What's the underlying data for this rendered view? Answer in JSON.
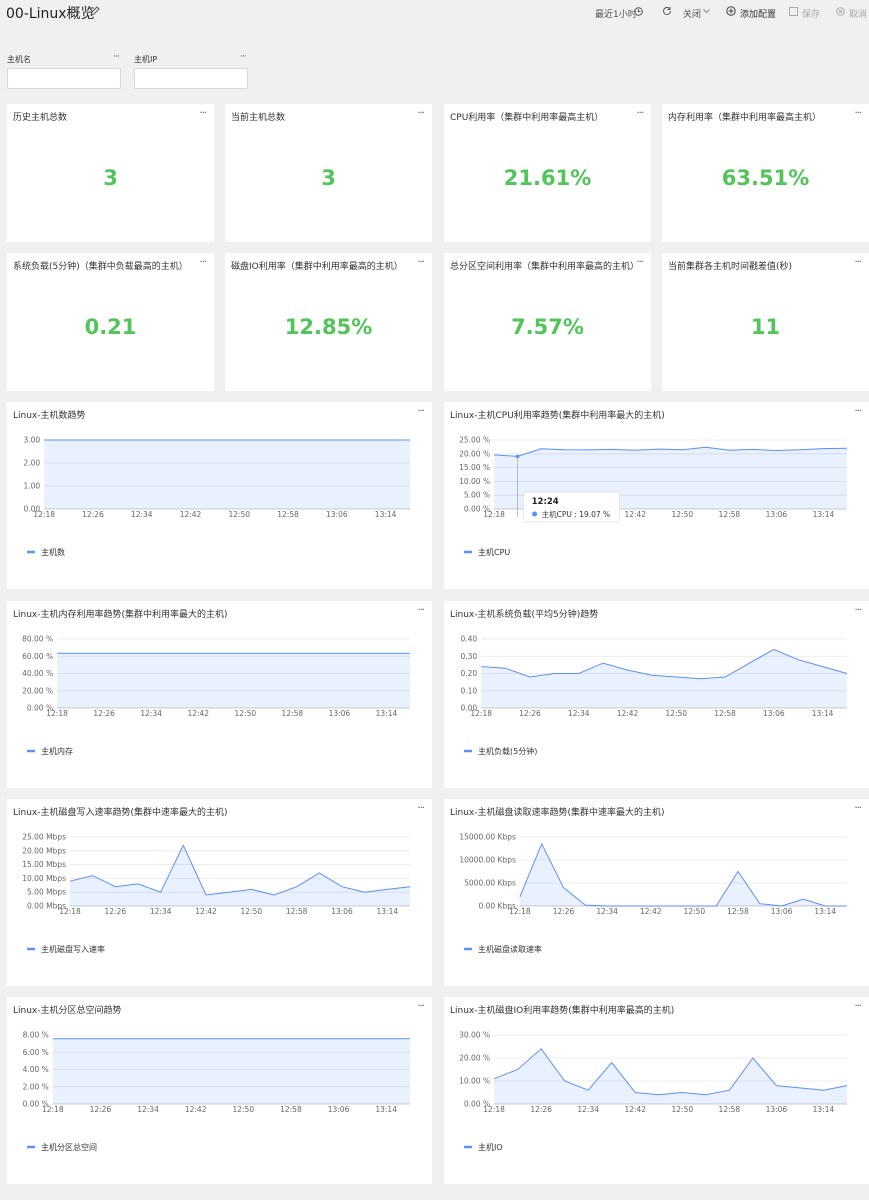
{
  "header": {
    "title": "00-Linux概览",
    "time_range": "最近1小时",
    "refresh": "关闭",
    "add": "添加配置",
    "save": "保存",
    "cancel": "取消"
  },
  "filters": [
    {
      "label": "主机名"
    },
    {
      "label": "主机IP"
    }
  ],
  "stats": [
    {
      "title": "历史主机总数",
      "value": 3
    },
    {
      "title": "当前主机总数",
      "value": 3
    },
    {
      "title": "CPU利用率（集群中利用率最高主机）",
      "value": "21.61%"
    },
    {
      "title": "内存利用率（集群中利用率最高主机）",
      "value": "63.51%"
    },
    {
      "title": "系统负载(5分钟)（集群中负载最高的主机）",
      "value": "0.21"
    },
    {
      "title": "磁盘IO利用率（集群中利用率最高的主机）",
      "value": "12.85%"
    },
    {
      "title": "总分区空间利用率（集群中利用率最高的主机）",
      "value": "7.57%"
    },
    {
      "title": "当前集群各主机时间戳差值(秒)",
      "value": 11
    }
  ],
  "charts": [
    {
      "type": "line",
      "title": "Linux-主机数趋势",
      "categories": [
        "12:18",
        null,
        "12:26",
        null,
        "12:34",
        null,
        "12:42",
        null,
        "12:50",
        null,
        "12:58",
        null,
        "13:06",
        null,
        "13:14",
        null
      ],
      "series": [
        {
          "name": "主机数",
          "color": "#5b8ff9",
          "values": [
            3,
            3,
            3,
            3,
            3,
            3,
            3,
            3,
            3,
            3,
            3,
            3,
            3,
            3,
            3,
            3
          ]
        }
      ],
      "ylim": [
        0,
        3
      ],
      "yticks": [
        {
          "value": 0,
          "label": "0.00"
        },
        {
          "value": 1,
          "label": "1.00"
        },
        {
          "value": 2,
          "label": "2.00"
        },
        {
          "value": 3,
          "label": "3.00"
        }
      ]
    },
    {
      "type": "line",
      "title": "Linux-主机CPU利用率趋势(集群中利用率最大的主机)",
      "categories": [
        "12:18",
        null,
        "12:26",
        null,
        "12:34",
        null,
        "12:42",
        null,
        "12:50",
        null,
        "12:58",
        null,
        "13:06",
        null,
        "13:14",
        null
      ],
      "series": [
        {
          "name": "主机CPU",
          "color": "#5b8ff9",
          "values": [
            19.6,
            19.07,
            21.8,
            21.5,
            21.4,
            21.6,
            21.3,
            21.7,
            21.5,
            22.4,
            21.3,
            21.6,
            21.2,
            21.5,
            21.9,
            22.0
          ]
        }
      ],
      "ylim": [
        0,
        25
      ],
      "yticks": [
        {
          "value": 0,
          "label": "0.00 %"
        },
        {
          "value": 5,
          "label": "5.00 %"
        },
        {
          "value": 10,
          "label": "10.00 %"
        },
        {
          "value": 15,
          "label": "15.00 %"
        },
        {
          "value": 20,
          "label": "20.00 %"
        },
        {
          "value": 25,
          "label": "25.00 %"
        }
      ],
      "tooltip": {
        "title": "12:24",
        "text": "主机CPU : 19.07 %"
      }
    },
    {
      "type": "line",
      "title": "Linux-主机内存利用率趋势(集群中利用率最大的主机)",
      "categories": [
        "12:18",
        null,
        "12:26",
        null,
        "12:34",
        null,
        "12:42",
        null,
        "12:50",
        null,
        "12:58",
        null,
        "13:06",
        null,
        "13:14",
        null
      ],
      "series": [
        {
          "name": "主机内存",
          "color": "#5b8ff9",
          "values": [
            63.5,
            63.5,
            63.5,
            63.5,
            63.5,
            63.5,
            63.5,
            63.5,
            63.5,
            63.5,
            63.5,
            63.5,
            63.5,
            63.5,
            63.5,
            63.5
          ]
        }
      ],
      "ylim": [
        0,
        80
      ],
      "yticks": [
        {
          "value": 0,
          "label": "0.00 %"
        },
        {
          "value": 20,
          "label": "20.00 %"
        },
        {
          "value": 40,
          "label": "40.00 %"
        },
        {
          "value": 60,
          "label": "60.00 %"
        },
        {
          "value": 80,
          "label": "80.00 %"
        }
      ]
    },
    {
      "type": "line",
      "title": "Linux-主机系统负载(平均5分钟)趋势",
      "categories": [
        "12:18",
        null,
        "12:26",
        null,
        "12:34",
        null,
        "12:42",
        null,
        "12:50",
        null,
        "12:58",
        null,
        "13:06",
        null,
        "13:14",
        null
      ],
      "series": [
        {
          "name": "主机负载(5分钟)",
          "color": "#5b8ff9",
          "values": [
            0.24,
            0.23,
            0.18,
            0.2,
            0.2,
            0.26,
            0.22,
            0.19,
            0.18,
            0.17,
            0.18,
            0.26,
            0.34,
            0.28,
            0.24,
            0.2
          ]
        }
      ],
      "ylim": [
        0,
        0.4
      ],
      "yticks": [
        {
          "value": 0,
          "label": "0.00"
        },
        {
          "value": 0.1,
          "label": "0.10"
        },
        {
          "value": 0.2,
          "label": "0.20"
        },
        {
          "value": 0.3,
          "label": "0.30"
        },
        {
          "value": 0.4,
          "label": "0.40"
        }
      ]
    },
    {
      "type": "line",
      "title": "Linux-主机磁盘写入速率趋势(集群中速率最大的主机)",
      "categories": [
        "12:18",
        null,
        "12:26",
        null,
        "12:34",
        null,
        "12:42",
        null,
        "12:50",
        null,
        "12:58",
        null,
        "13:06",
        null,
        "13:14",
        null
      ],
      "series": [
        {
          "name": "主机磁盘写入速率",
          "color": "#5b8ff9",
          "values": [
            9,
            11,
            7,
            8,
            5,
            22,
            4,
            5,
            6,
            4,
            7,
            12,
            7,
            5,
            6,
            7
          ]
        }
      ],
      "ylim": [
        0,
        25
      ],
      "yticks": [
        {
          "value": 0,
          "label": "0.00 Mbps"
        },
        {
          "value": 5,
          "label": "5.00 Mbps"
        },
        {
          "value": 10,
          "label": "10.00 Mbps"
        },
        {
          "value": 15,
          "label": "15.00 Mbps"
        },
        {
          "value": 20,
          "label": "20.00 Mbps"
        },
        {
          "value": 25,
          "label": "25.00 Mbps"
        }
      ]
    },
    {
      "type": "line",
      "title": "Linux-主机磁盘读取速率趋势(集群中速率最大的主机)",
      "categories": [
        "12:18",
        null,
        "12:26",
        null,
        "12:34",
        null,
        "12:42",
        null,
        "12:50",
        null,
        "12:58",
        null,
        "13:06",
        null,
        "13:14",
        null
      ],
      "series": [
        {
          "name": "主机磁盘读取速率",
          "color": "#5b8ff9",
          "values": [
            2000,
            13500,
            4000,
            200,
            0,
            0,
            0,
            0,
            0,
            0,
            7500,
            500,
            0,
            1500,
            0,
            0
          ]
        }
      ],
      "ylim": [
        0,
        15000
      ],
      "yticks": [
        {
          "value": 0,
          "label": "0.00 Kbps"
        },
        {
          "value": 5000,
          "label": "5000.00 Kbps"
        },
        {
          "value": 10000,
          "label": "10000.00 Kbps"
        },
        {
          "value": 15000,
          "label": "15000.00 Kbps"
        }
      ]
    },
    {
      "type": "line",
      "title": "Linux-主机分区总空间趋势",
      "categories": [
        "12:18",
        null,
        "12:26",
        null,
        "12:34",
        null,
        "12:42",
        null,
        "12:50",
        null,
        "12:58",
        null,
        "13:06",
        null,
        "13:14",
        null
      ],
      "series": [
        {
          "name": "主机分区总空间",
          "color": "#5b8ff9",
          "values": [
            7.57,
            7.57,
            7.57,
            7.57,
            7.57,
            7.57,
            7.57,
            7.57,
            7.57,
            7.57,
            7.57,
            7.57,
            7.57,
            7.57,
            7.57,
            7.57
          ]
        }
      ],
      "ylim": [
        0,
        8
      ],
      "yticks": [
        {
          "value": 0,
          "label": "0.00 %"
        },
        {
          "value": 2,
          "label": "2.00 %"
        },
        {
          "value": 4,
          "label": "4.00 %"
        },
        {
          "value": 6,
          "label": "6.00 %"
        },
        {
          "value": 8,
          "label": "8.00 %"
        }
      ]
    },
    {
      "type": "line",
      "title": "Linux-主机磁盘IO利用率趋势(集群中利用率最高的主机)",
      "categories": [
        "12:18",
        null,
        "12:26",
        null,
        "12:34",
        null,
        "12:42",
        null,
        "12:50",
        null,
        "12:58",
        null,
        "13:06",
        null,
        "13:14",
        null
      ],
      "series": [
        {
          "name": "主机IO",
          "color": "#5b8ff9",
          "values": [
            11,
            15,
            24,
            10,
            6,
            18,
            5,
            4,
            5,
            4,
            6,
            20,
            8,
            7,
            6,
            8
          ]
        }
      ],
      "ylim": [
        0,
        30
      ],
      "yticks": [
        {
          "value": 0,
          "label": "0.00 %"
        },
        {
          "value": 10,
          "label": "10.00 %"
        },
        {
          "value": 20,
          "label": "20.00 %"
        },
        {
          "value": 30,
          "label": "30.00 %"
        }
      ]
    }
  ]
}
